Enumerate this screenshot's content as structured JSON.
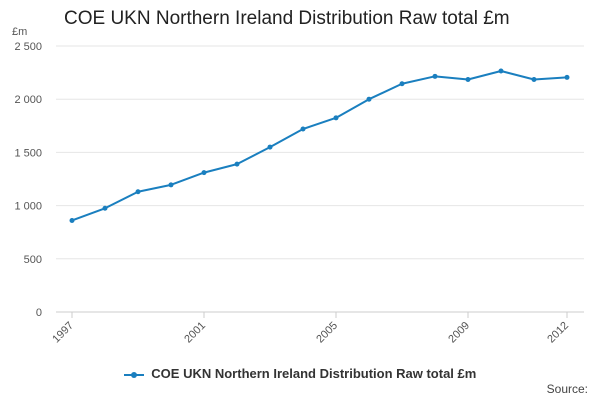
{
  "chart_data": {
    "type": "line",
    "title": "COE UKN Northern Ireland Distribution Raw total £m",
    "ylabel": "£m",
    "x": [
      "1997",
      "1998",
      "1999",
      "2000",
      "2001",
      "2002",
      "2003",
      "2004",
      "2005",
      "2006",
      "2007",
      "2008",
      "2009",
      "2010",
      "2011",
      "2012"
    ],
    "x_tick_labels": [
      "1997",
      "2001",
      "2005",
      "2009",
      "2012"
    ],
    "y_tick_labels": [
      "0",
      "500",
      "1 000",
      "1 500",
      "2 000",
      "2 500"
    ],
    "ylim": [
      0,
      2500
    ],
    "grid": true,
    "legend_position": "bottom",
    "series": [
      {
        "name": "COE UKN Northern Ireland Distribution Raw total £m",
        "color": "#1a7fbf",
        "values": [
          860,
          975,
          1130,
          1195,
          1310,
          1390,
          1550,
          1720,
          1825,
          2000,
          2145,
          2215,
          2185,
          2265,
          2185,
          2205
        ]
      }
    ]
  },
  "source_label": "Source:"
}
